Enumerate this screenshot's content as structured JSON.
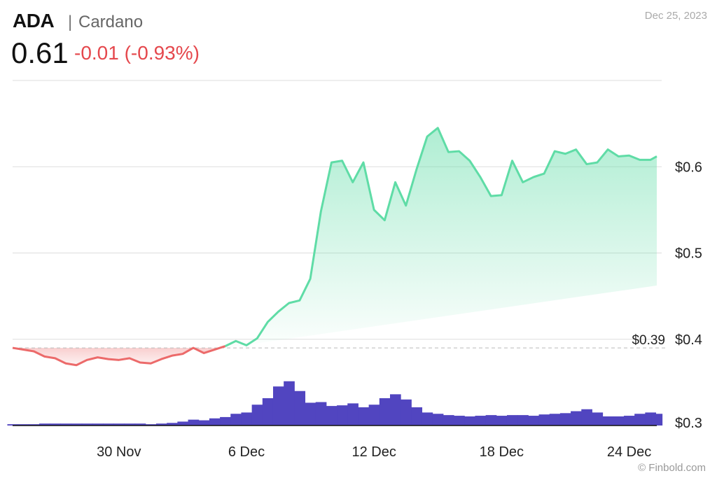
{
  "header": {
    "symbol": "ADA",
    "separator": "|",
    "name": "Cardano",
    "price": "0.61",
    "change": "-0.01 (-0.93%)",
    "date": "Dec 25, 2023"
  },
  "credit": "© Finbold.com",
  "colors": {
    "up": "#5fdca6",
    "down": "#ec6a6a",
    "volume": "#5145c0",
    "change_text": "#e5484d"
  },
  "chart_data": {
    "type": "area",
    "title": "",
    "xlabel": "",
    "ylabel": "",
    "reference_line": {
      "value": 0.39,
      "label": "$0.39"
    },
    "ylim": [
      0.3,
      0.7
    ],
    "y_ticks": [
      {
        "value": 0.3,
        "label": "$0.3"
      },
      {
        "value": 0.4,
        "label": "$0.4"
      },
      {
        "value": 0.5,
        "label": "$0.5"
      },
      {
        "value": 0.6,
        "label": "$0.6"
      }
    ],
    "x_ticks": [
      {
        "day": 30,
        "label": "30 Nov"
      },
      {
        "day": 36,
        "label": "6 Dec"
      },
      {
        "day": 42,
        "label": "12 Dec"
      },
      {
        "day": 48,
        "label": "18 Dec"
      },
      {
        "day": 54,
        "label": "24 Dec"
      }
    ],
    "x": [
      25.0,
      25.5,
      26.0,
      26.5,
      27.0,
      27.5,
      28.0,
      28.5,
      29.0,
      29.5,
      30.0,
      30.5,
      31.0,
      31.5,
      32.0,
      32.5,
      33.0,
      33.5,
      34.0,
      34.5,
      35.0,
      35.5,
      36.0,
      36.5,
      37.0,
      37.5,
      38.0,
      38.5,
      39.0,
      39.5,
      40.0,
      40.5,
      41.0,
      41.5,
      42.0,
      42.5,
      43.0,
      43.5,
      44.0,
      44.5,
      45.0,
      45.5,
      46.0,
      46.5,
      47.0,
      47.5,
      48.0,
      48.5,
      49.0,
      49.5,
      50.0,
      50.5,
      51.0,
      51.5,
      52.0,
      52.5,
      53.0,
      53.5,
      54.0,
      54.5,
      55.0,
      55.3
    ],
    "series": [
      {
        "values": [
          0.39,
          0.388,
          0.386,
          0.38,
          0.378,
          0.372,
          0.37,
          0.376,
          0.379,
          0.377,
          0.376,
          0.378,
          0.373,
          0.372,
          0.377,
          0.381,
          0.383,
          0.39,
          0.384,
          0.388,
          0.392,
          0.398,
          0.393,
          0.401,
          0.42,
          0.432,
          0.442,
          0.445,
          0.47,
          0.548,
          0.605,
          0.607,
          0.582,
          0.605,
          0.55,
          0.538,
          0.582,
          0.555,
          0.597,
          0.635,
          0.645,
          0.617,
          0.618,
          0.607,
          0.588,
          0.566,
          0.567,
          0.607,
          0.582,
          0.588,
          0.592,
          0.618,
          0.615,
          0.62,
          0.603,
          0.605,
          0.62,
          0.612,
          0.613,
          0.608,
          0.608,
          0.612
        ]
      },
      {
        "name": "",
        "type": "bar",
        "values": [
          2,
          2,
          2,
          3,
          3,
          3,
          3,
          3,
          3,
          3,
          3,
          3,
          3,
          2,
          3,
          4,
          6,
          9,
          8,
          11,
          13,
          18,
          20,
          32,
          42,
          60,
          68,
          53,
          35,
          36,
          30,
          31,
          34,
          28,
          32,
          42,
          48,
          40,
          28,
          20,
          18,
          16,
          15,
          14,
          15,
          16,
          15,
          16,
          16,
          15,
          17,
          18,
          19,
          22,
          25,
          20,
          14,
          14,
          15,
          18,
          20,
          18
        ],
        "ylim": [
          0,
          100
        ]
      }
    ]
  }
}
